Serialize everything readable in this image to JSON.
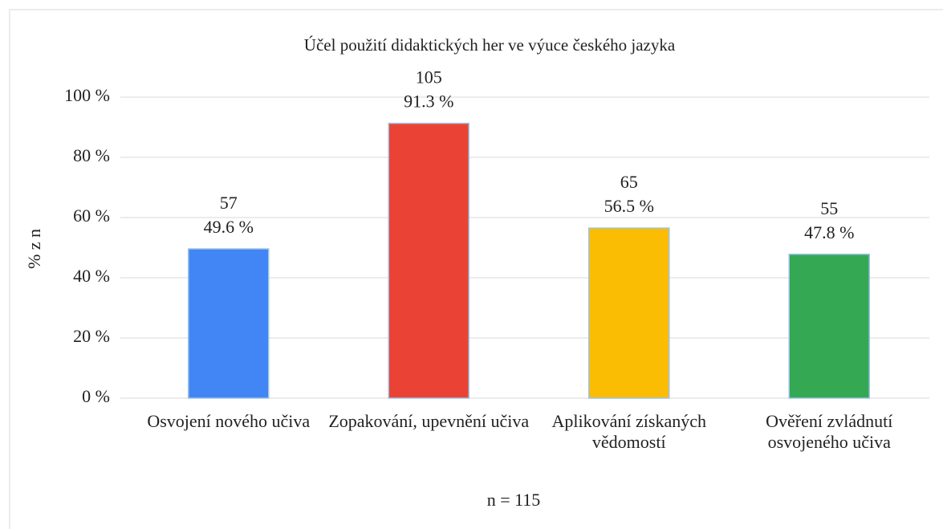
{
  "chart_data": {
    "type": "bar",
    "title": "Účel použití didaktických her ve výuce českého jazyka",
    "y_label": "% z n",
    "note": "n = 115",
    "categories": [
      "Osvojení nového učiva",
      "Zopakování, upevnění učiva",
      "Aplikování získaných vědomostí",
      "Ověření zvládnutí osvojeného učiva"
    ],
    "values": [
      49.6,
      91.3,
      56.5,
      47.8
    ],
    "value_labels": [
      "49.6 %",
      "91.3 %",
      "56.5 %",
      "47.8 %"
    ],
    "counts": [
      57,
      105,
      65,
      55
    ],
    "colors": [
      "#4285f4",
      "#ea4335",
      "#fbbc04",
      "#34a853"
    ],
    "ylim": [
      0,
      100
    ],
    "yticks": [
      {
        "value": 0,
        "label": "0 %"
      },
      {
        "value": 20,
        "label": "20 %"
      },
      {
        "value": 40,
        "label": "40 %"
      },
      {
        "value": 60,
        "label": "60 %"
      },
      {
        "value": 80,
        "label": "80 %"
      },
      {
        "value": 100,
        "label": "100 %"
      }
    ],
    "grid": true
  }
}
